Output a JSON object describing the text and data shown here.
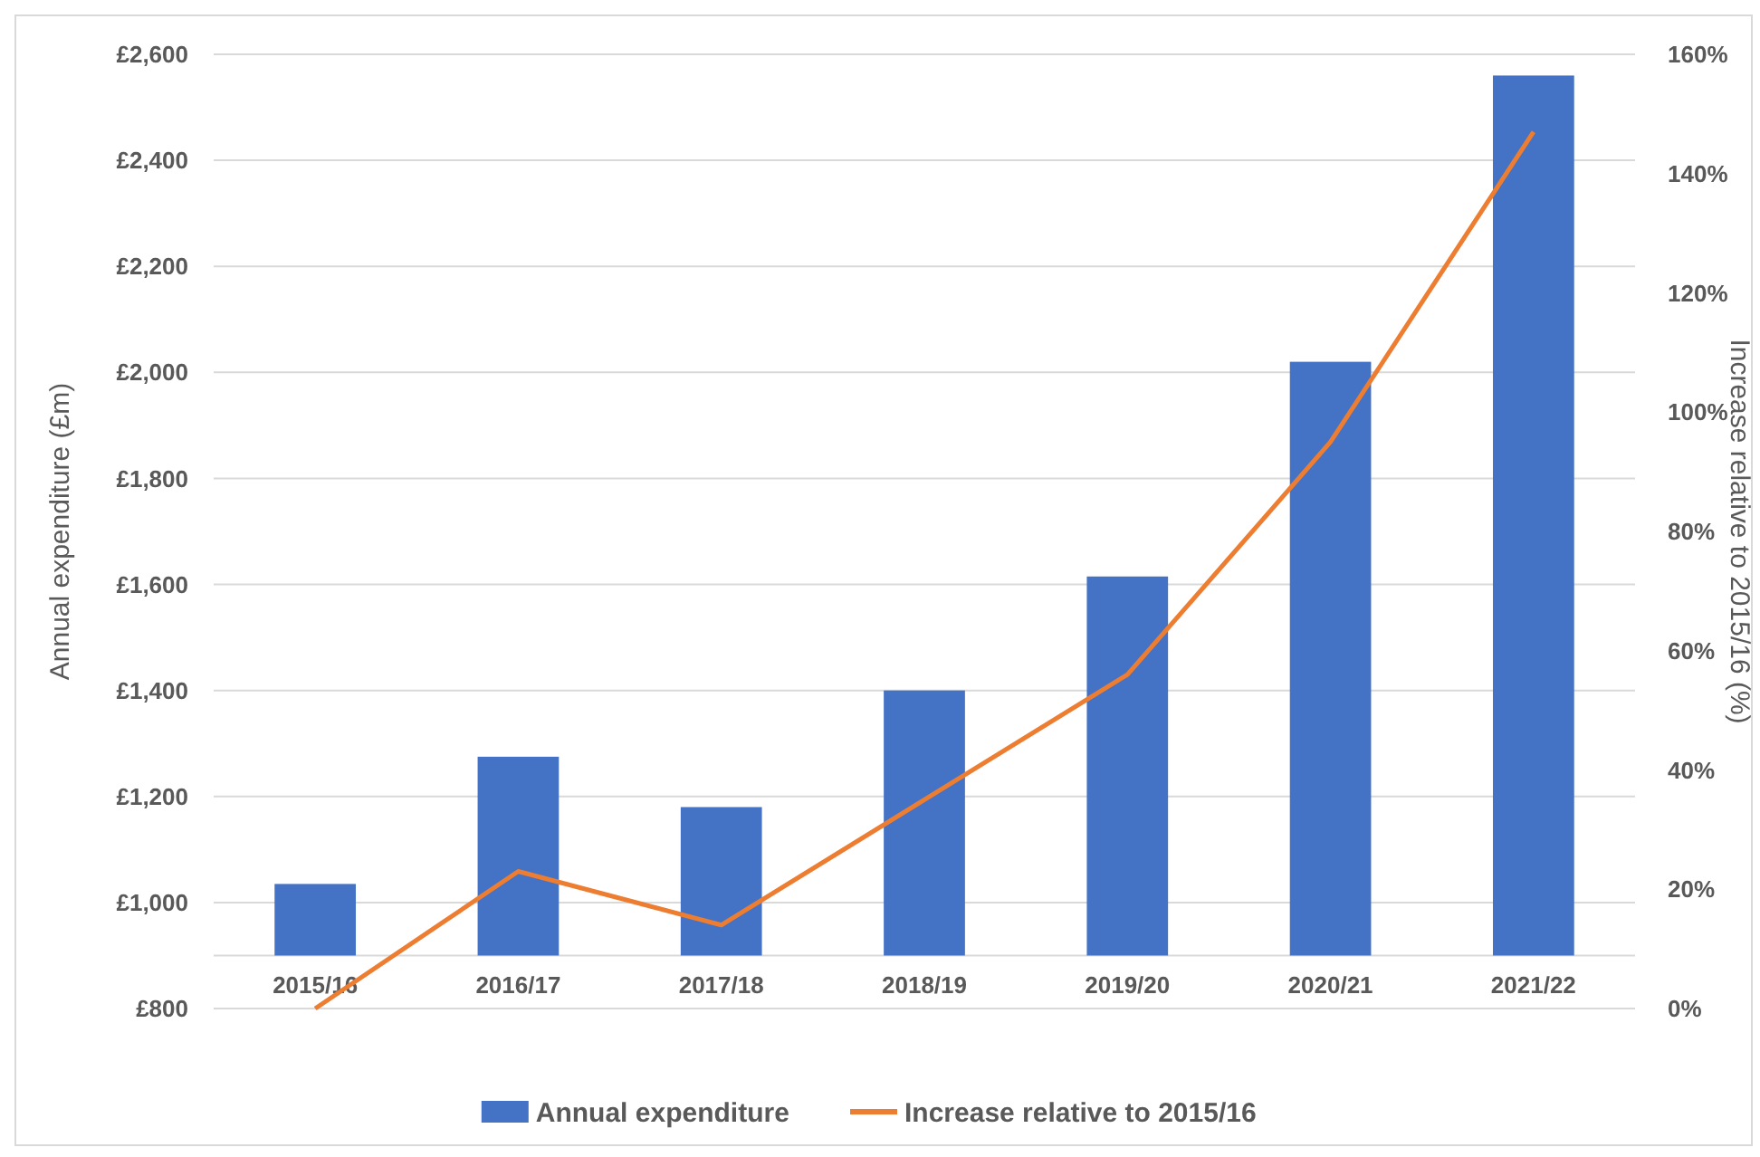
{
  "chart_data": {
    "type": "bar",
    "ylabel": "Annual expenditure (£m)",
    "y2label": "Increase relative to 2015/16 (%)",
    "categories": [
      "2015/16",
      "2016/17",
      "2017/18",
      "2018/19",
      "2019/20",
      "2020/21",
      "2021/22"
    ],
    "series": [
      {
        "name": "Annual expenditure",
        "color": "#4472c4",
        "base": [
          900,
          900,
          900,
          900,
          900,
          900,
          900
        ],
        "values": [
          135,
          375,
          280,
          500,
          715,
          1120,
          1660
        ]
      },
      {
        "name": "Increase relative to 2015/16",
        "type": "line",
        "axis": "y2",
        "color": "#ed7d31",
        "values": [
          0,
          23,
          14,
          35,
          56,
          95,
          147
        ]
      }
    ],
    "ylim": [
      800,
      2600
    ],
    "yticks": [
      {
        "value": 800,
        "label": "£800"
      },
      {
        "value": 1000,
        "label": "£1,000"
      },
      {
        "value": 1200,
        "label": "£1,200"
      },
      {
        "value": 1400,
        "label": "£1,400"
      },
      {
        "value": 1600,
        "label": "£1,600"
      },
      {
        "value": 1800,
        "label": "£1,800"
      },
      {
        "value": 2000,
        "label": "£2,000"
      },
      {
        "value": 2200,
        "label": "£2,200"
      },
      {
        "value": 2400,
        "label": "£2,400"
      },
      {
        "value": 2600,
        "label": "£2,600"
      }
    ],
    "y2lim": [
      0,
      160
    ],
    "y2ticks": [
      {
        "value": 0,
        "label": "0%"
      },
      {
        "value": 20,
        "label": "20%"
      },
      {
        "value": 40,
        "label": "40%"
      },
      {
        "value": 60,
        "label": "60%"
      },
      {
        "value": 80,
        "label": "80%"
      },
      {
        "value": 100,
        "label": "100%"
      },
      {
        "value": 120,
        "label": "120%"
      },
      {
        "value": 140,
        "label": "140%"
      },
      {
        "value": 160,
        "label": "160%"
      }
    ],
    "grid": "y",
    "legend": "bottom",
    "marker": "none",
    "line_style": "solid"
  }
}
